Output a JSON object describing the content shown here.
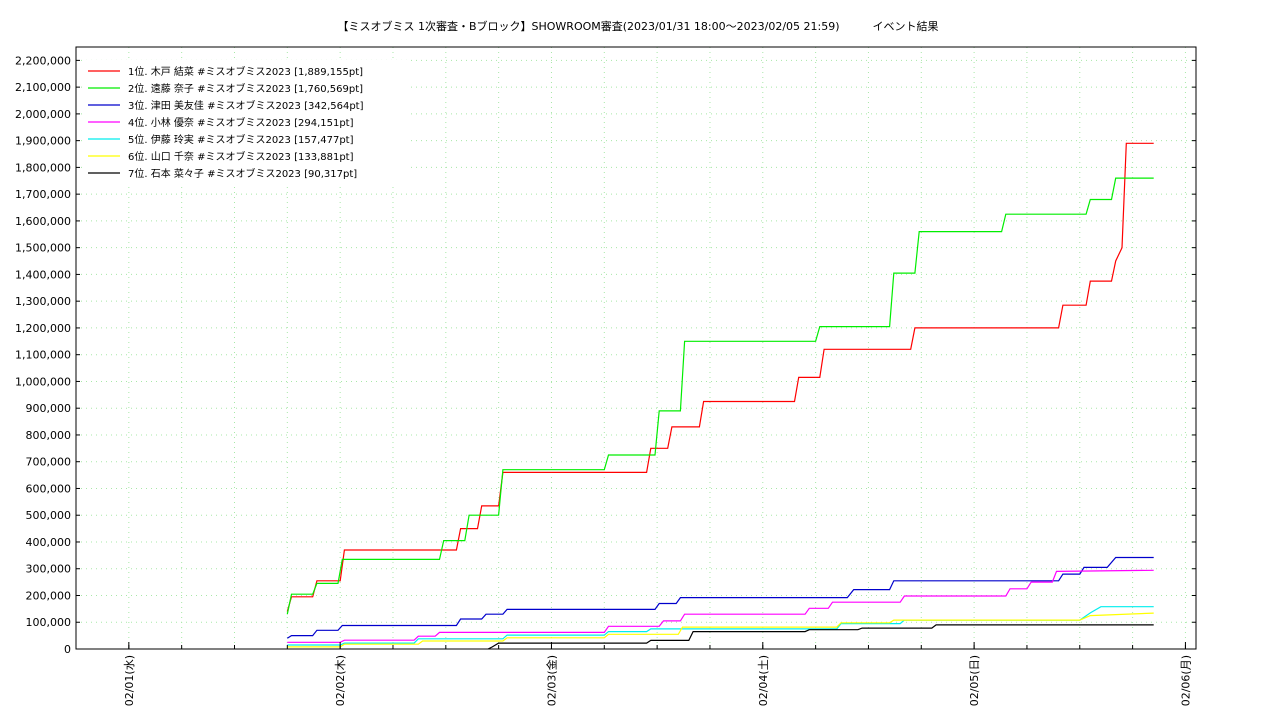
{
  "chart_data": {
    "type": "line",
    "title": "【ミスオブミス 1次審査・Bブロック】SHOWROOM審査(2023/01/31 18:00～2023/02/05 21:59)　　　イベント結果",
    "xlabel": "",
    "ylabel": "",
    "ylim": [
      0,
      2250000
    ],
    "xlim": [
      0,
      5.3
    ],
    "grid": true,
    "legend_position": "top-left",
    "y_ticks": [
      0,
      100000,
      200000,
      300000,
      400000,
      500000,
      600000,
      700000,
      800000,
      900000,
      1000000,
      1100000,
      1200000,
      1300000,
      1400000,
      1500000,
      1600000,
      1700000,
      1800000,
      1900000,
      2000000,
      2100000,
      2200000
    ],
    "y_tick_labels": [
      "0",
      "100,000",
      "200,000",
      "300,000",
      "400,000",
      "500,000",
      "600,000",
      "700,000",
      "800,000",
      "900,000",
      "1,000,000",
      "1,100,000",
      "1,200,000",
      "1,300,000",
      "1,400,000",
      "1,500,000",
      "1,600,000",
      "1,700,000",
      "1,800,000",
      "1,900,000",
      "2,000,000",
      "2,100,000",
      "2,200,000"
    ],
    "x_ticks": [
      0.25,
      1.25,
      2.25,
      3.25,
      4.25,
      5.25
    ],
    "x_tick_labels": [
      "02/01(水)",
      "02/02(木)",
      "02/03(金)",
      "02/04(土)",
      "02/05(日)",
      "02/06(月)"
    ],
    "series": [
      {
        "name": "1位. 木戸 結菜 #ミスオブミス2023 [1,889,155pt]",
        "color": "#ff0000",
        "points": [
          [
            1.0,
            140000
          ],
          [
            1.02,
            195000
          ],
          [
            1.12,
            195000
          ],
          [
            1.14,
            255000
          ],
          [
            1.25,
            255000
          ],
          [
            1.27,
            370000
          ],
          [
            1.8,
            370000
          ],
          [
            1.82,
            450000
          ],
          [
            1.9,
            450000
          ],
          [
            1.92,
            535000
          ],
          [
            2.0,
            535000
          ],
          [
            2.02,
            660000
          ],
          [
            2.7,
            660000
          ],
          [
            2.72,
            750000
          ],
          [
            2.8,
            750000
          ],
          [
            2.82,
            830000
          ],
          [
            2.95,
            830000
          ],
          [
            2.97,
            925000
          ],
          [
            3.4,
            925000
          ],
          [
            3.42,
            1015000
          ],
          [
            3.52,
            1015000
          ],
          [
            3.54,
            1120000
          ],
          [
            3.95,
            1120000
          ],
          [
            3.97,
            1200000
          ],
          [
            4.65,
            1200000
          ],
          [
            4.67,
            1285000
          ],
          [
            4.78,
            1285000
          ],
          [
            4.8,
            1375000
          ],
          [
            4.9,
            1375000
          ],
          [
            4.92,
            1450000
          ],
          [
            4.95,
            1500000
          ],
          [
            4.97,
            1890000
          ],
          [
            5.1,
            1890000
          ]
        ]
      },
      {
        "name": "2位. 遠藤 奈子 #ミスオブミス2023 [1,760,569pt]",
        "color": "#00ee00",
        "points": [
          [
            1.0,
            130000
          ],
          [
            1.02,
            205000
          ],
          [
            1.12,
            205000
          ],
          [
            1.14,
            245000
          ],
          [
            1.24,
            245000
          ],
          [
            1.26,
            335000
          ],
          [
            1.72,
            335000
          ],
          [
            1.74,
            405000
          ],
          [
            1.84,
            405000
          ],
          [
            1.86,
            500000
          ],
          [
            2.0,
            500000
          ],
          [
            2.02,
            670000
          ],
          [
            2.5,
            670000
          ],
          [
            2.52,
            725000
          ],
          [
            2.74,
            725000
          ],
          [
            2.76,
            890000
          ],
          [
            2.86,
            890000
          ],
          [
            2.88,
            1150000
          ],
          [
            3.5,
            1150000
          ],
          [
            3.52,
            1205000
          ],
          [
            3.85,
            1205000
          ],
          [
            3.87,
            1405000
          ],
          [
            3.97,
            1405000
          ],
          [
            3.99,
            1560000
          ],
          [
            4.38,
            1560000
          ],
          [
            4.4,
            1625000
          ],
          [
            4.78,
            1625000
          ],
          [
            4.8,
            1680000
          ],
          [
            4.9,
            1680000
          ],
          [
            4.92,
            1760000
          ],
          [
            5.1,
            1760000
          ]
        ]
      },
      {
        "name": "3位. 津田 美友佳 #ミスオブミス2023 [342,564pt]",
        "color": "#0000cc",
        "points": [
          [
            1.0,
            40000
          ],
          [
            1.02,
            50000
          ],
          [
            1.12,
            50000
          ],
          [
            1.14,
            70000
          ],
          [
            1.24,
            70000
          ],
          [
            1.26,
            88000
          ],
          [
            1.8,
            88000
          ],
          [
            1.82,
            112000
          ],
          [
            1.92,
            112000
          ],
          [
            1.94,
            130000
          ],
          [
            2.02,
            130000
          ],
          [
            2.04,
            148000
          ],
          [
            2.74,
            148000
          ],
          [
            2.76,
            170000
          ],
          [
            2.84,
            170000
          ],
          [
            2.86,
            192000
          ],
          [
            3.65,
            192000
          ],
          [
            3.68,
            222000
          ],
          [
            3.85,
            222000
          ],
          [
            3.87,
            255000
          ],
          [
            4.65,
            255000
          ],
          [
            4.67,
            280000
          ],
          [
            4.75,
            280000
          ],
          [
            4.77,
            305000
          ],
          [
            4.88,
            305000
          ],
          [
            4.92,
            342000
          ],
          [
            5.1,
            342000
          ]
        ]
      },
      {
        "name": "4位. 小林 優奈 #ミスオブミス2023 [294,151pt]",
        "color": "#ff00ff",
        "points": [
          [
            1.0,
            25000
          ],
          [
            1.25,
            25000
          ],
          [
            1.27,
            33000
          ],
          [
            1.6,
            33000
          ],
          [
            1.62,
            48000
          ],
          [
            1.7,
            48000
          ],
          [
            1.72,
            62000
          ],
          [
            2.5,
            62000
          ],
          [
            2.52,
            85000
          ],
          [
            2.76,
            85000
          ],
          [
            2.78,
            105000
          ],
          [
            2.86,
            105000
          ],
          [
            2.88,
            130000
          ],
          [
            3.45,
            130000
          ],
          [
            3.47,
            152000
          ],
          [
            3.56,
            152000
          ],
          [
            3.58,
            175000
          ],
          [
            3.9,
            175000
          ],
          [
            3.92,
            198000
          ],
          [
            4.4,
            198000
          ],
          [
            4.42,
            225000
          ],
          [
            4.5,
            225000
          ],
          [
            4.52,
            250000
          ],
          [
            4.62,
            250000
          ],
          [
            4.64,
            290000
          ],
          [
            5.1,
            294000
          ]
        ]
      },
      {
        "name": "5位. 伊藤 玲実 #ミスオブミス2023 [157,477pt]",
        "color": "#00eeee",
        "points": [
          [
            1.0,
            15000
          ],
          [
            1.25,
            15000
          ],
          [
            1.27,
            22000
          ],
          [
            1.6,
            22000
          ],
          [
            1.62,
            38000
          ],
          [
            2.02,
            38000
          ],
          [
            2.04,
            52000
          ],
          [
            2.5,
            52000
          ],
          [
            2.52,
            65000
          ],
          [
            2.7,
            65000
          ],
          [
            2.72,
            75000
          ],
          [
            3.6,
            75000
          ],
          [
            3.62,
            95000
          ],
          [
            3.9,
            95000
          ],
          [
            3.92,
            108000
          ],
          [
            4.75,
            108000
          ],
          [
            4.8,
            135000
          ],
          [
            4.85,
            158000
          ],
          [
            5.1,
            158000
          ]
        ]
      },
      {
        "name": "6位. 山口 千奈 #ミスオブミス2023 [133,881pt]",
        "color": "#ffff00",
        "points": [
          [
            1.0,
            8000
          ],
          [
            1.25,
            8000
          ],
          [
            1.27,
            18000
          ],
          [
            1.62,
            18000
          ],
          [
            1.64,
            30000
          ],
          [
            2.02,
            30000
          ],
          [
            2.04,
            42000
          ],
          [
            2.5,
            42000
          ],
          [
            2.52,
            55000
          ],
          [
            2.85,
            55000
          ],
          [
            2.87,
            82000
          ],
          [
            3.6,
            82000
          ],
          [
            3.62,
            98000
          ],
          [
            3.85,
            98000
          ],
          [
            3.87,
            108000
          ],
          [
            4.75,
            108000
          ],
          [
            4.8,
            125000
          ],
          [
            5.1,
            134000
          ]
        ]
      },
      {
        "name": "7位. 石本 菜々子 #ミスオブミス2023 [90,317pt]",
        "color": "#000000",
        "points": [
          [
            1.95,
            0
          ],
          [
            1.97,
            8000
          ],
          [
            2.0,
            22000
          ],
          [
            2.7,
            22000
          ],
          [
            2.72,
            32000
          ],
          [
            2.9,
            32000
          ],
          [
            2.92,
            65000
          ],
          [
            3.45,
            65000
          ],
          [
            3.47,
            72000
          ],
          [
            3.7,
            72000
          ],
          [
            3.72,
            78000
          ],
          [
            4.05,
            78000
          ],
          [
            4.07,
            90000
          ],
          [
            5.1,
            90000
          ]
        ]
      }
    ]
  }
}
